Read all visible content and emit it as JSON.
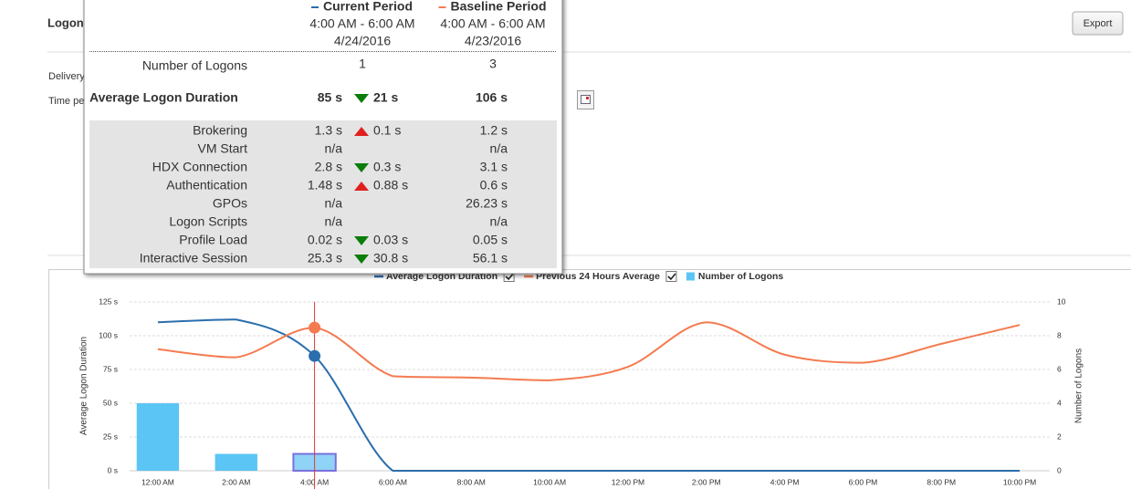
{
  "page": {
    "title": "Logon",
    "delivery_label": "Delivery",
    "time_label": "Time pe",
    "export": "Export"
  },
  "chart_data": {
    "type": "line",
    "categories": [
      "12:00 AM",
      "2:00 AM",
      "4:00 AM",
      "6:00 AM",
      "8:00 AM",
      "10:00 AM",
      "12:00 PM",
      "2:00 PM",
      "4:00 PM",
      "6:00 PM",
      "8:00 PM",
      "10:00 PM"
    ],
    "series": [
      {
        "name": "Average Logon Duration",
        "type": "line",
        "color": "#2a6ead",
        "values": [
          110,
          112,
          85,
          0,
          0,
          0,
          0,
          0,
          0,
          0,
          0,
          0
        ]
      },
      {
        "name": "Previous 24 Hours Average",
        "type": "line",
        "color": "#f47b50",
        "values": [
          90,
          84,
          106,
          70,
          69,
          67,
          77,
          110,
          86,
          80,
          94,
          108
        ]
      },
      {
        "name": "Number of Logons",
        "type": "bar",
        "axis": "y2",
        "color": "#5bc5f5",
        "values": [
          4,
          1,
          1,
          0,
          0,
          0,
          0,
          0,
          0,
          0,
          0,
          0
        ]
      }
    ],
    "y_label": "Average Logon Duration",
    "y2_label": "Number of Logons",
    "ylim": [
      0,
      125
    ],
    "yticks": [
      {
        "value": 0,
        "label": "0 s"
      },
      {
        "value": 25,
        "label": "25 s"
      },
      {
        "value": 50,
        "label": "50 s"
      },
      {
        "value": 75,
        "label": "75 s"
      },
      {
        "value": 100,
        "label": "100 s"
      },
      {
        "value": 125,
        "label": "125 s"
      }
    ],
    "y2lim": [
      0,
      10
    ],
    "y2ticks": [
      0,
      2,
      4,
      6,
      8,
      10
    ],
    "grid": true,
    "highlight_category": "4:00 AM"
  },
  "tooltip": {
    "columns": [
      {
        "name": "Current Period",
        "color": "#2a6ead",
        "time": "4:00 AM - 6:00 AM",
        "date": "4/24/2016"
      },
      {
        "name": "Baseline Period",
        "color": "#f47b50",
        "time": "4:00 AM - 6:00 AM",
        "date": "4/23/2016"
      }
    ],
    "logons": {
      "label": "Number of Logons",
      "current": "1",
      "baseline": "3"
    },
    "average": {
      "label": "Average Logon Duration",
      "current": "85 s",
      "change": "21 s",
      "trend": "down",
      "baseline": "106 s"
    },
    "rows": [
      {
        "label": "Brokering",
        "current": "1.3 s",
        "change": "0.1 s",
        "trend": "up",
        "baseline": "1.2 s"
      },
      {
        "label": "VM Start",
        "current": "n/a",
        "baseline": "n/a"
      },
      {
        "label": "HDX Connection",
        "current": "2.8 s",
        "change": "0.3 s",
        "trend": "down",
        "baseline": "3.1 s"
      },
      {
        "label": "Authentication",
        "current": "1.48 s",
        "change": "0.88 s",
        "trend": "up",
        "baseline": "0.6 s"
      },
      {
        "label": "GPOs",
        "current": "n/a",
        "baseline": "26.23 s"
      },
      {
        "label": "Logon Scripts",
        "current": "n/a",
        "baseline": "n/a"
      },
      {
        "label": "Profile Load",
        "current": "0.02 s",
        "change": "0.03 s",
        "trend": "down",
        "baseline": "0.05 s"
      },
      {
        "label": "Interactive Session",
        "current": "25.3 s",
        "change": "30.8 s",
        "trend": "down",
        "baseline": "56.1 s"
      }
    ]
  }
}
